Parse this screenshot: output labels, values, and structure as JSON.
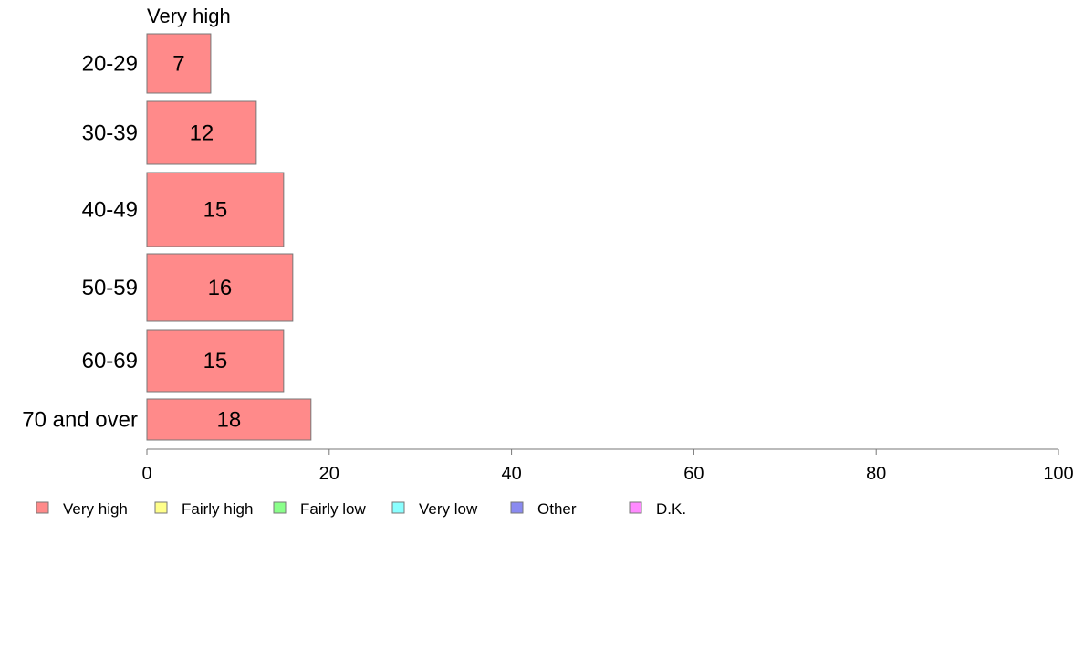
{
  "chart_data": {
    "type": "bar",
    "orientation": "horizontal",
    "panel_title": "Very high",
    "categories": [
      "20-29",
      "30-39",
      "40-49",
      "50-59",
      "60-69",
      "70 and over"
    ],
    "series": [
      {
        "name": "Very high",
        "values": [
          7,
          12,
          15,
          16,
          15,
          18
        ],
        "color": "#FF8A8A"
      }
    ],
    "data_labels": [
      "7",
      "12",
      "15",
      "16",
      "15",
      "18"
    ],
    "xlim": [
      0,
      100
    ],
    "x_ticks": [
      0,
      20,
      40,
      60,
      80,
      100
    ],
    "x_tick_labels": [
      "0",
      "20",
      "40",
      "60",
      "80",
      "100"
    ],
    "grid": false,
    "legend_position": "bottom",
    "legend": [
      {
        "label": "Very high",
        "color": "#FF8A8A"
      },
      {
        "label": "Fairly high",
        "color": "#FFFF8A"
      },
      {
        "label": "Fairly low",
        "color": "#8AFF8A"
      },
      {
        "label": "Very low",
        "color": "#8AFFFF"
      },
      {
        "label": "Other",
        "color": "#8A8AF0"
      },
      {
        "label": "D.K.",
        "color": "#FF8AFF"
      }
    ],
    "bar_border_color": "#777777",
    "axis_color": "#777777"
  }
}
